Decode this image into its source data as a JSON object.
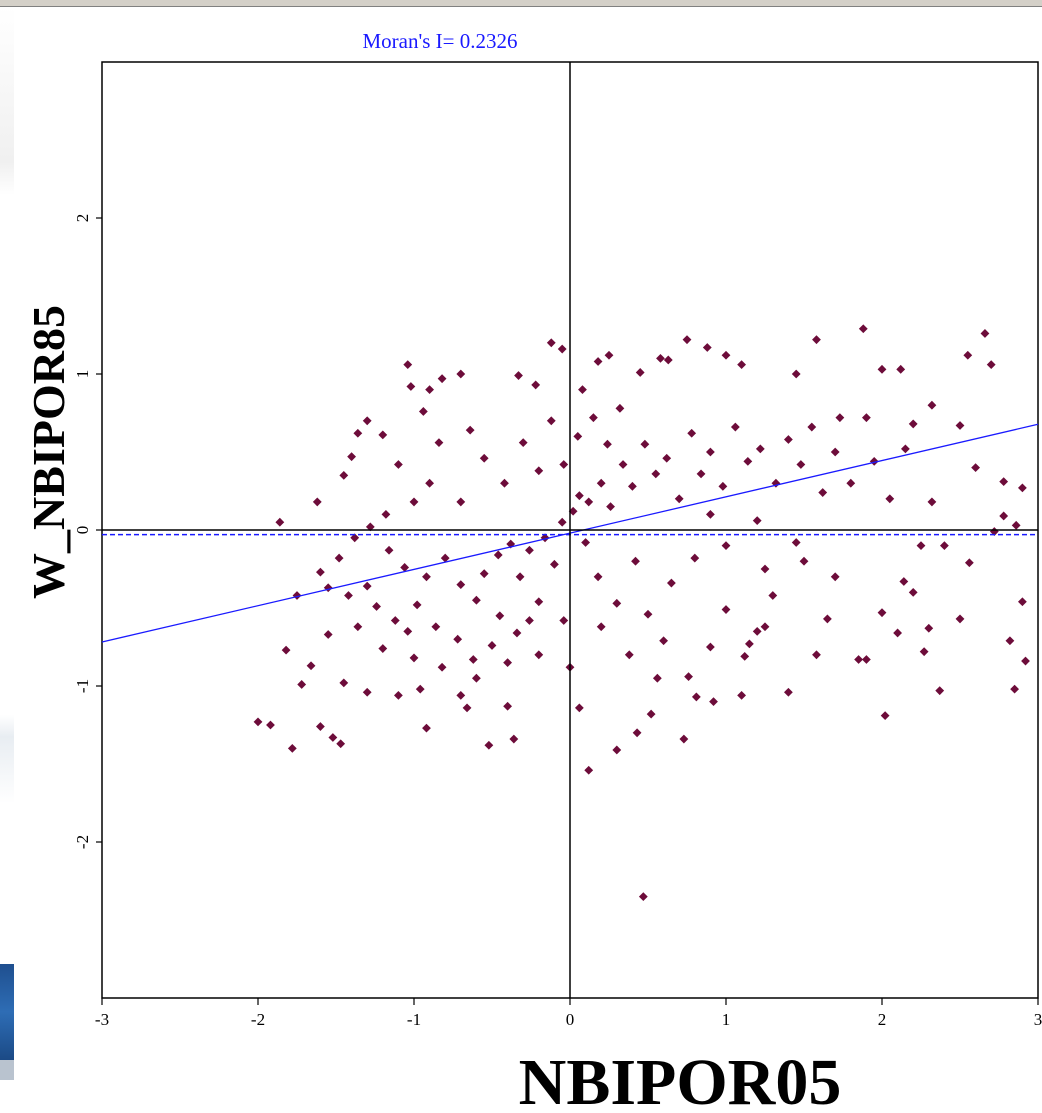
{
  "chart_data": {
    "type": "scatter",
    "annotation": "Moran's I= 0.2326",
    "moran_i": 0.2326,
    "xlabel": "NBIPOR05",
    "ylabel": "W_NBIPOR85",
    "xlim": [
      -3,
      3
    ],
    "ylim": [
      -3,
      3
    ],
    "x_ticks": [
      "-3",
      "-2",
      "-1",
      "0",
      "1",
      "2",
      "3"
    ],
    "y_ticks": [
      "-2",
      "-1",
      "0",
      "1",
      "2"
    ],
    "mean_line_y": -0.03,
    "regression": {
      "slope": 0.2326,
      "intercept": -0.02
    },
    "colors": {
      "points": "#6d0c3a",
      "regression_line": "#1a1aff",
      "annotation": "#1a1aff",
      "axes": "#000000"
    },
    "points": [
      [
        -2.0,
        -1.23
      ],
      [
        -1.92,
        -1.25
      ],
      [
        -1.78,
        -1.4
      ],
      [
        -1.86,
        0.05
      ],
      [
        -1.72,
        -0.99
      ],
      [
        -1.66,
        -0.87
      ],
      [
        -1.6,
        -1.26
      ],
      [
        -1.55,
        -0.67
      ],
      [
        -1.52,
        -1.33
      ],
      [
        -1.47,
        -1.37
      ],
      [
        -1.62,
        0.18
      ],
      [
        -1.45,
        0.35
      ],
      [
        -1.4,
        0.47
      ],
      [
        -1.36,
        0.62
      ],
      [
        -1.3,
        0.7
      ],
      [
        -1.2,
        0.61
      ],
      [
        -1.04,
        1.06
      ],
      [
        -1.02,
        0.92
      ],
      [
        -0.94,
        0.76
      ],
      [
        -0.9,
        0.9
      ],
      [
        -0.82,
        0.97
      ],
      [
        -0.7,
        1.0
      ],
      [
        -0.33,
        0.99
      ],
      [
        -0.22,
        0.93
      ],
      [
        -0.12,
        1.2
      ],
      [
        -0.05,
        1.16
      ],
      [
        0.08,
        0.9
      ],
      [
        0.18,
        1.08
      ],
      [
        0.25,
        1.12
      ],
      [
        0.45,
        1.01
      ],
      [
        0.58,
        1.1
      ],
      [
        0.63,
        1.09
      ],
      [
        0.75,
        1.22
      ],
      [
        0.88,
        1.17
      ],
      [
        1.0,
        1.12
      ],
      [
        1.1,
        1.06
      ],
      [
        1.45,
        1.0
      ],
      [
        1.58,
        1.22
      ],
      [
        1.88,
        1.29
      ],
      [
        2.0,
        1.03
      ],
      [
        2.12,
        1.03
      ],
      [
        2.55,
        1.12
      ],
      [
        2.66,
        1.26
      ],
      [
        2.7,
        1.06
      ],
      [
        1.73,
        0.72
      ],
      [
        1.9,
        0.72
      ],
      [
        2.2,
        0.68
      ],
      [
        2.32,
        0.8
      ],
      [
        2.5,
        0.67
      ],
      [
        2.6,
        0.4
      ],
      [
        2.78,
        0.31
      ],
      [
        2.9,
        0.27
      ],
      [
        2.78,
        0.09
      ],
      [
        2.86,
        0.03
      ],
      [
        2.72,
        -0.01
      ],
      [
        2.56,
        -0.21
      ],
      [
        2.4,
        -0.1
      ],
      [
        2.25,
        -0.1
      ],
      [
        2.14,
        -0.33
      ],
      [
        2.2,
        -0.4
      ],
      [
        2.1,
        -0.66
      ],
      [
        2.0,
        -0.53
      ],
      [
        1.9,
        -0.83
      ],
      [
        1.85,
        -0.83
      ],
      [
        2.27,
        -0.78
      ],
      [
        2.3,
        -0.63
      ],
      [
        2.37,
        -1.03
      ],
      [
        2.5,
        -0.57
      ],
      [
        2.9,
        -0.46
      ],
      [
        2.82,
        -0.71
      ],
      [
        2.92,
        -0.84
      ],
      [
        2.85,
        -1.02
      ],
      [
        2.02,
        -1.19
      ],
      [
        1.65,
        -0.57
      ],
      [
        1.5,
        -0.2
      ],
      [
        1.4,
        -1.04
      ],
      [
        1.25,
        -0.62
      ],
      [
        1.2,
        -0.65
      ],
      [
        1.15,
        -0.73
      ],
      [
        1.12,
        -0.81
      ],
      [
        0.92,
        -1.1
      ],
      [
        0.81,
        -1.07
      ],
      [
        1.1,
        -1.06
      ],
      [
        1.0,
        -0.51
      ],
      [
        0.76,
        -0.94
      ],
      [
        0.73,
        -1.34
      ],
      [
        0.5,
        -0.54
      ],
      [
        0.6,
        -0.71
      ],
      [
        0.52,
        -1.18
      ],
      [
        0.47,
        -2.35
      ],
      [
        0.43,
        -1.3
      ],
      [
        0.3,
        -1.41
      ],
      [
        0.12,
        -1.54
      ],
      [
        0.06,
        -1.14
      ],
      [
        0.0,
        -0.88
      ],
      [
        -0.04,
        -0.58
      ],
      [
        -0.36,
        -1.34
      ],
      [
        -0.52,
        -1.38
      ],
      [
        -0.4,
        -1.13
      ],
      [
        -0.66,
        -1.14
      ],
      [
        -0.7,
        -1.06
      ],
      [
        -0.92,
        -1.27
      ],
      [
        -0.96,
        -1.02
      ],
      [
        -1.1,
        -1.06
      ],
      [
        -1.3,
        -1.04
      ],
      [
        -1.45,
        -0.98
      ],
      [
        -1.2,
        -0.76
      ],
      [
        -1.0,
        -0.82
      ],
      [
        -1.12,
        -0.58
      ],
      [
        -1.04,
        -0.65
      ],
      [
        -0.86,
        -0.62
      ],
      [
        -0.72,
        -0.7
      ],
      [
        -0.62,
        -0.83
      ],
      [
        -0.5,
        -0.74
      ],
      [
        -0.4,
        -0.85
      ],
      [
        -0.34,
        -0.66
      ],
      [
        -0.26,
        -0.58
      ],
      [
        -0.2,
        -0.46
      ],
      [
        -1.36,
        -0.62
      ],
      [
        -1.24,
        -0.49
      ],
      [
        -1.3,
        -0.36
      ],
      [
        -1.42,
        -0.42
      ],
      [
        -1.55,
        -0.37
      ],
      [
        -1.6,
        -0.27
      ],
      [
        -1.75,
        -0.42
      ],
      [
        -1.82,
        -0.77
      ],
      [
        -1.48,
        -0.18
      ],
      [
        -1.38,
        -0.05
      ],
      [
        -1.28,
        0.02
      ],
      [
        -1.16,
        -0.13
      ],
      [
        -1.06,
        -0.24
      ],
      [
        -0.92,
        -0.3
      ],
      [
        -0.8,
        -0.18
      ],
      [
        -0.7,
        -0.35
      ],
      [
        -0.6,
        -0.45
      ],
      [
        -0.55,
        -0.28
      ],
      [
        -0.46,
        -0.16
      ],
      [
        -0.38,
        -0.09
      ],
      [
        -0.32,
        -0.3
      ],
      [
        -0.26,
        -0.13
      ],
      [
        -0.16,
        -0.05
      ],
      [
        -0.1,
        -0.22
      ],
      [
        -0.05,
        0.05
      ],
      [
        0.02,
        0.12
      ],
      [
        0.06,
        0.22
      ],
      [
        0.12,
        0.18
      ],
      [
        0.2,
        0.3
      ],
      [
        0.26,
        0.15
      ],
      [
        0.34,
        0.42
      ],
      [
        0.4,
        0.28
      ],
      [
        0.48,
        0.55
      ],
      [
        0.55,
        0.36
      ],
      [
        0.62,
        0.46
      ],
      [
        0.7,
        0.2
      ],
      [
        0.78,
        0.62
      ],
      [
        0.84,
        0.36
      ],
      [
        0.9,
        0.5
      ],
      [
        0.98,
        0.28
      ],
      [
        1.06,
        0.66
      ],
      [
        1.14,
        0.44
      ],
      [
        1.22,
        0.52
      ],
      [
        1.32,
        0.3
      ],
      [
        1.4,
        0.58
      ],
      [
        1.48,
        0.42
      ],
      [
        1.55,
        0.66
      ],
      [
        1.62,
        0.24
      ],
      [
        1.7,
        0.5
      ],
      [
        1.8,
        0.3
      ],
      [
        1.95,
        0.44
      ],
      [
        2.05,
        0.2
      ],
      [
        2.15,
        0.52
      ],
      [
        2.32,
        0.18
      ],
      [
        1.0,
        -0.1
      ],
      [
        0.8,
        -0.18
      ],
      [
        0.65,
        -0.34
      ],
      [
        0.42,
        -0.2
      ],
      [
        0.3,
        -0.47
      ],
      [
        0.18,
        -0.3
      ],
      [
        0.1,
        -0.08
      ],
      [
        1.25,
        -0.25
      ],
      [
        1.45,
        -0.08
      ],
      [
        1.7,
        -0.3
      ],
      [
        1.2,
        0.06
      ],
      [
        0.9,
        0.1
      ],
      [
        -0.9,
        0.3
      ],
      [
        -0.7,
        0.18
      ],
      [
        -0.55,
        0.46
      ],
      [
        -0.42,
        0.3
      ],
      [
        -0.3,
        0.56
      ],
      [
        -0.2,
        0.38
      ],
      [
        -0.12,
        0.7
      ],
      [
        -0.04,
        0.42
      ],
      [
        0.05,
        0.6
      ],
      [
        0.15,
        0.72
      ],
      [
        0.24,
        0.55
      ],
      [
        0.32,
        0.78
      ],
      [
        -1.1,
        0.42
      ],
      [
        -1.0,
        0.18
      ],
      [
        -0.84,
        0.56
      ],
      [
        -0.64,
        0.64
      ],
      [
        -1.18,
        0.1
      ],
      [
        -0.98,
        -0.48
      ],
      [
        -0.82,
        -0.88
      ],
      [
        -0.6,
        -0.95
      ],
      [
        -0.45,
        -0.55
      ],
      [
        -0.2,
        -0.8
      ],
      [
        0.2,
        -0.62
      ],
      [
        0.38,
        -0.8
      ],
      [
        0.56,
        -0.95
      ],
      [
        0.9,
        -0.75
      ],
      [
        1.3,
        -0.42
      ],
      [
        1.58,
        -0.8
      ]
    ]
  }
}
